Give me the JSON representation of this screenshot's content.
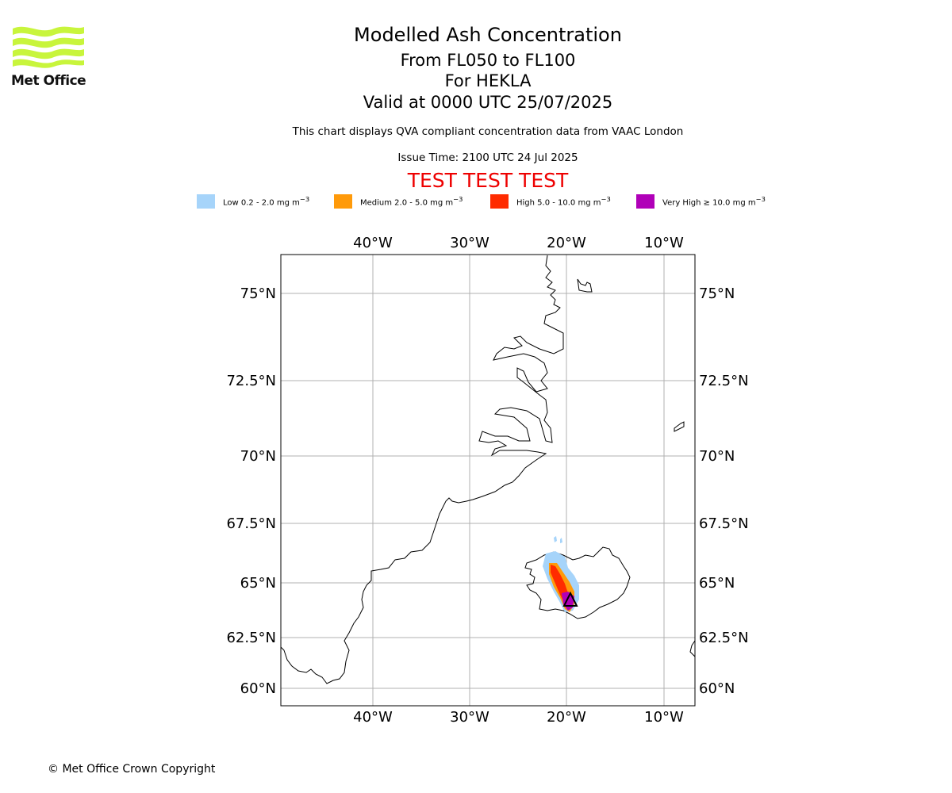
{
  "logo": {
    "text": "Met Office",
    "color": "#c8f53c"
  },
  "header": {
    "title": "Modelled Ash Concentration",
    "levels": "From FL050 to FL100",
    "volcano": "For HEKLA",
    "valid": "Valid at 0000 UTC 25/07/2025",
    "description": "This chart displays QVA compliant concentration data from VAAC London",
    "issue_time": "Issue Time: 2100 UTC 24 Jul 2025",
    "test_banner": "TEST TEST TEST"
  },
  "legend": [
    {
      "label_main": "Low 0.2 - 2.0 mg m",
      "sup": "−3",
      "color": "#a6d4fa"
    },
    {
      "label_main": "Medium 2.0 - 5.0 mg m",
      "sup": "−3",
      "color": "#ff9a0a"
    },
    {
      "label_main": "High 5.0 - 10.0 mg m",
      "sup": "−3",
      "color": "#ff2b00"
    },
    {
      "label_main": "Very High  ≥  10.0 mg m",
      "sup": "−3",
      "color": "#b000b8"
    }
  ],
  "map": {
    "lon_labels": [
      "40°W",
      "30°W",
      "20°W",
      "10°W"
    ],
    "lat_labels": [
      "75°N",
      "72.5°N",
      "70°N",
      "67.5°N",
      "65°N",
      "62.5°N",
      "60°N"
    ],
    "grid_color": "#b0b0b0",
    "volcano_marker": "triangle",
    "volcano_name": "HEKLA"
  },
  "footer": {
    "copyright": "© Met Office Crown Copyright"
  }
}
